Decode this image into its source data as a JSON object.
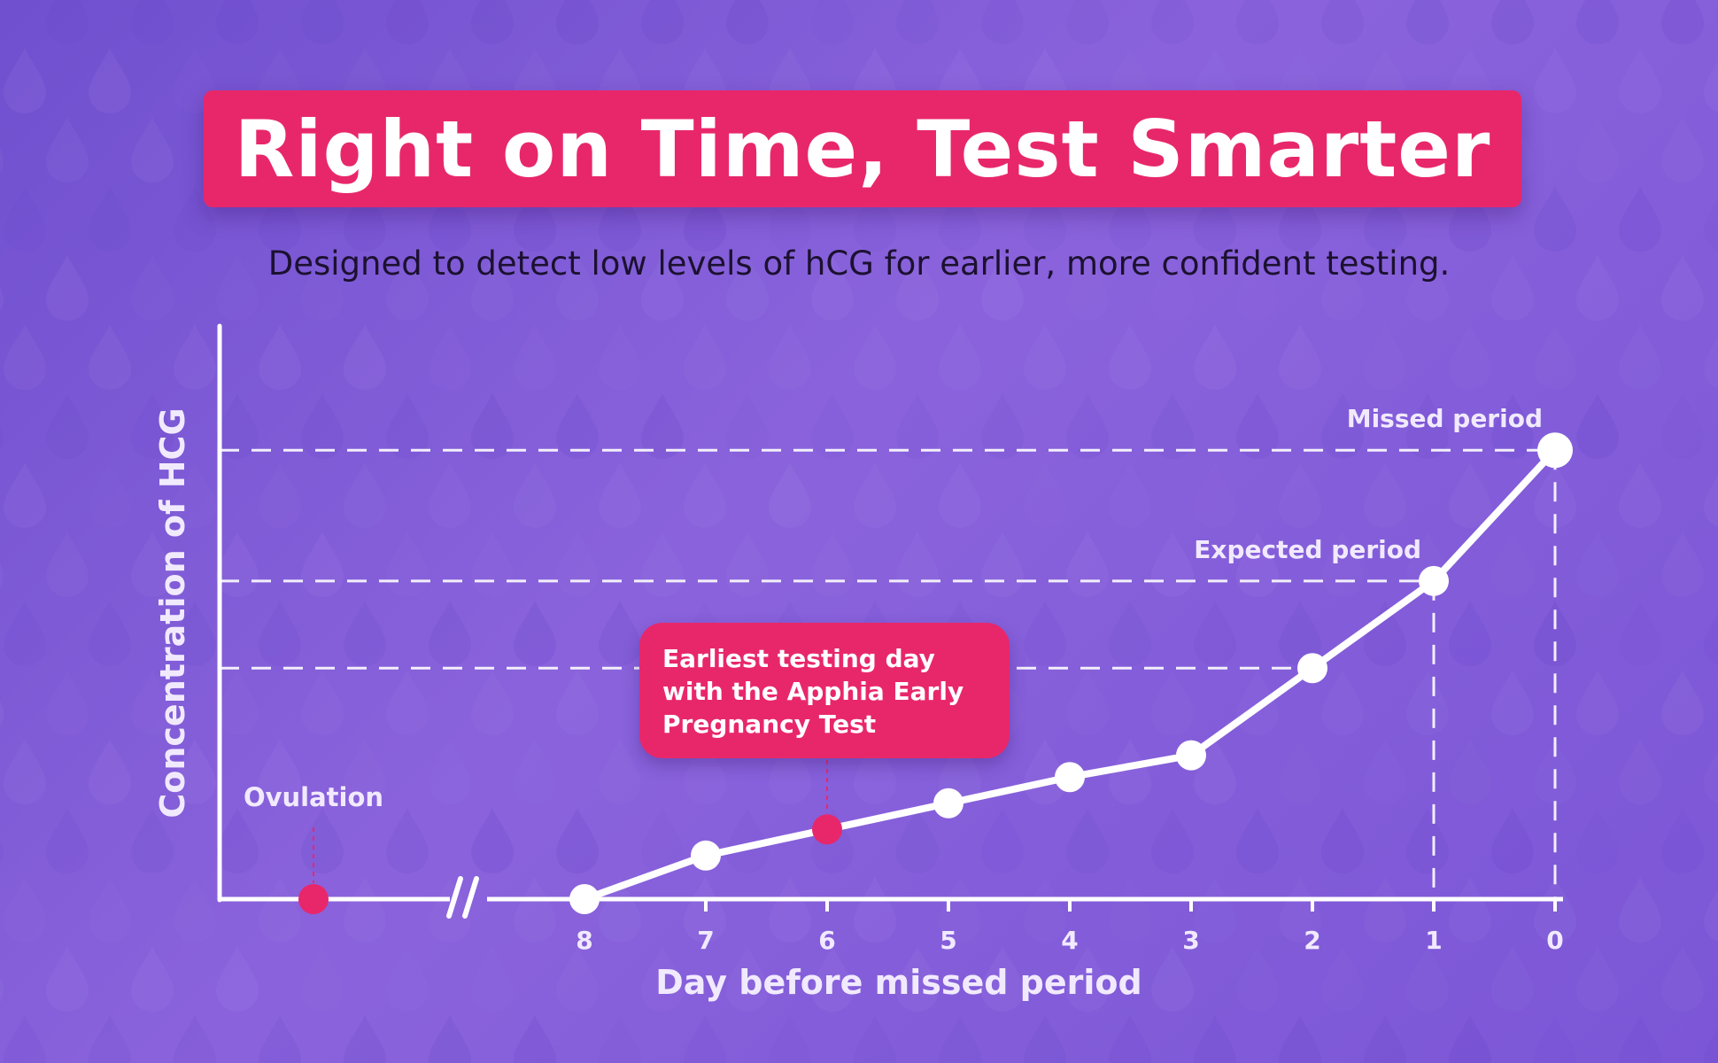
{
  "header": {
    "title": "Right on Time, Test Smarter",
    "subtitle": "Designed to detect low levels of hCG for earlier, more confident testing."
  },
  "callout": {
    "lines": [
      "Earliest testing day",
      "with the Apphia Early",
      "Pregnancy Test"
    ]
  },
  "colors": {
    "accent": "#e8276b",
    "background": "#7b56d6",
    "line": "#ffffff",
    "label": "#f1eafe"
  },
  "background_pattern": "droplet-icon",
  "chart_data": {
    "type": "line",
    "xlabel": "Day before missed period",
    "ylabel": "Concentration of HCG",
    "x": [
      8,
      7,
      6,
      5,
      4,
      3,
      2,
      1,
      0
    ],
    "x_axis_reversed": true,
    "x_axis_break_before": 8,
    "ylim": [
      0,
      100
    ],
    "grid": false,
    "series": [
      {
        "values": [
          0,
          10,
          16,
          22,
          28,
          33,
          53,
          73,
          103
        ]
      }
    ],
    "reference_lines": [
      {
        "y": 103,
        "label": "Missed period",
        "x": 0
      },
      {
        "y": 73,
        "label": "Expected period",
        "x": 1
      },
      {
        "y": 53,
        "label": ""
      }
    ],
    "highlight_points": [
      {
        "x": 6,
        "y": 16,
        "label": "Earliest testing day with the Apphia Early Pregnancy Test"
      }
    ],
    "pre_break_point": {
      "label": "Ovulation",
      "y": 0
    }
  }
}
